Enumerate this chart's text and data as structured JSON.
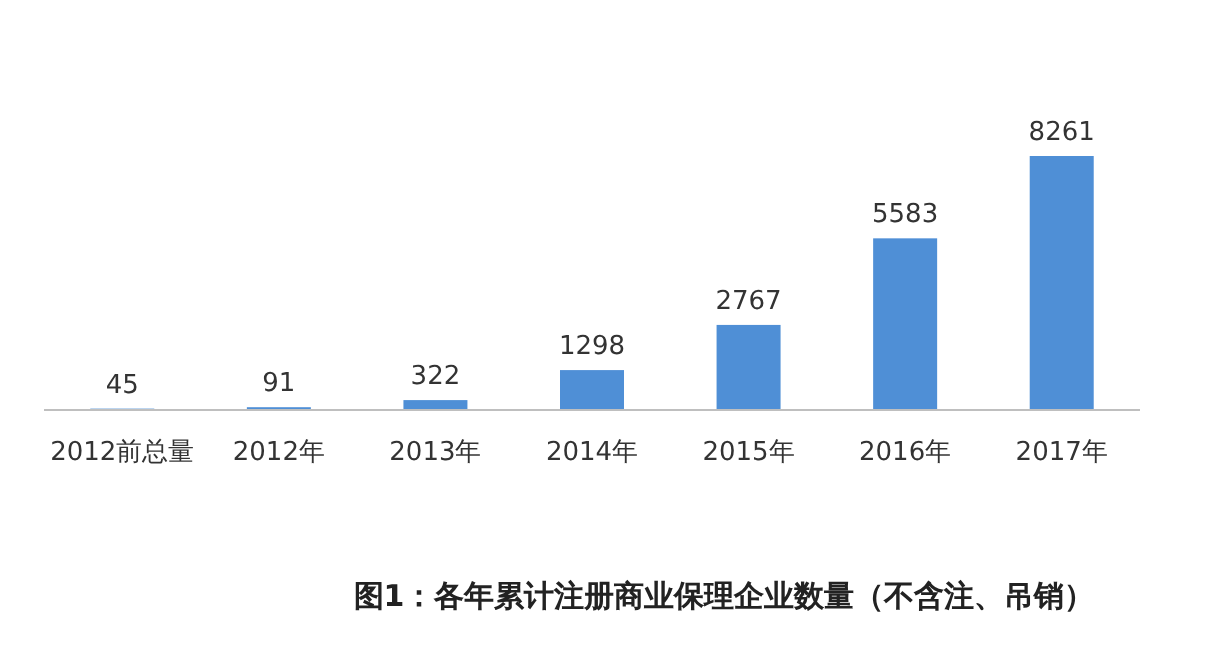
{
  "chart_data": {
    "type": "bar",
    "title": "图1：各年累计注册商业保理企业数量（不含注、吊销）",
    "categories": [
      "2012前总量",
      "2012年",
      "2013年",
      "2014年",
      "2015年",
      "2016年",
      "2017年"
    ],
    "values": [
      45,
      91,
      322,
      1298,
      2767,
      5583,
      8261
    ],
    "color": "#4f8fd6",
    "data_labels": true
  }
}
